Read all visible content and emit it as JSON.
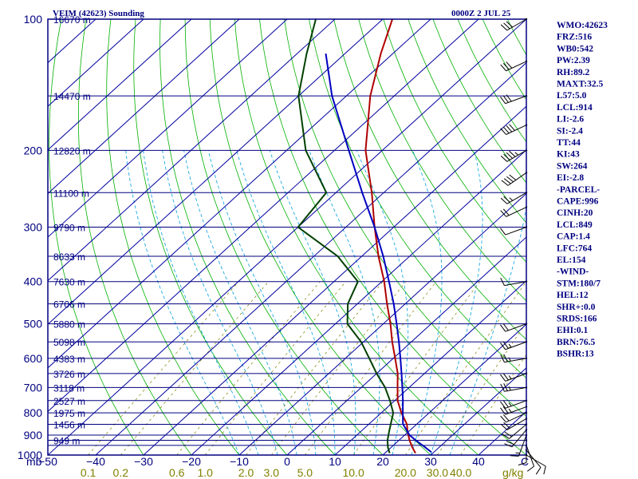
{
  "header": {
    "title": "VEIM (42623) Sounding",
    "time": "0000Z  2 JUL 25"
  },
  "chart_data": {
    "type": "line",
    "diagram": "skew-T log-P",
    "xlabel": "C",
    "pressure_unit": "mb",
    "mixing_ratio_unit": "g/kg",
    "pressure_range": [
      1000,
      100
    ],
    "temperature_range": [
      -50,
      50
    ],
    "pressure_levels": [
      100,
      200,
      300,
      400,
      500,
      600,
      700,
      800,
      900,
      1000
    ],
    "pressure_labels": [
      "100",
      "200",
      "300",
      "400",
      "500",
      "600",
      "700",
      "800",
      "900",
      "1000"
    ],
    "temperature_ticks": [
      -50,
      -40,
      -30,
      -20,
      -10,
      0,
      10,
      20,
      30,
      40
    ],
    "temperature_tick_labels": [
      "−50",
      "−40",
      "−30",
      "−20",
      "−10",
      "0",
      "10",
      "20",
      "30",
      "40"
    ],
    "mixing_ratio_ticks": [
      0.1,
      0.2,
      0.6,
      1.0,
      2.0,
      3.0,
      5.0,
      10.0,
      20.0,
      30.0,
      40.0
    ],
    "mixing_ratio_tick_labels": [
      "0.1",
      "0.2",
      "0.6",
      "1.0",
      "2.0",
      "3.0",
      "5.0",
      "10.0",
      "20.0",
      "30.0",
      "40.0"
    ],
    "height_labels": [
      {
        "p": 100,
        "text": "16670 m"
      },
      {
        "p": 150,
        "text": "14470 m"
      },
      {
        "p": 200,
        "text": "12820 m"
      },
      {
        "p": 250,
        "text": "11100 m"
      },
      {
        "p": 300,
        "text": "9790 m"
      },
      {
        "p": 350,
        "text": "8633 m"
      },
      {
        "p": 400,
        "text": "7630 m"
      },
      {
        "p": 450,
        "text": "6706 m"
      },
      {
        "p": 500,
        "text": "5880 m"
      },
      {
        "p": 550,
        "text": "5098 m"
      },
      {
        "p": 600,
        "text": "4383 m"
      },
      {
        "p": 650,
        "text": "3726 m"
      },
      {
        "p": 700,
        "text": "3118 m"
      },
      {
        "p": 750,
        "text": "2527 m"
      },
      {
        "p": 800,
        "text": "1975 m"
      },
      {
        "p": 850,
        "text": "1456 m"
      },
      {
        "p": 925,
        "text": "949 m"
      }
    ],
    "series": [
      {
        "role": "temperature",
        "color": "#b00000",
        "points": [
          [
            990,
            26.4
          ],
          [
            960,
            24.4
          ],
          [
            925,
            22.2
          ],
          [
            880,
            19.6
          ],
          [
            850,
            18.0
          ],
          [
            800,
            14.2
          ],
          [
            750,
            10.6
          ],
          [
            700,
            7.6
          ],
          [
            650,
            4.4
          ],
          [
            600,
            0.4
          ],
          [
            550,
            -4.0
          ],
          [
            500,
            -8.5
          ],
          [
            450,
            -13.8
          ],
          [
            400,
            -19.5
          ],
          [
            350,
            -26.5
          ],
          [
            300,
            -34.0
          ],
          [
            250,
            -42.5
          ],
          [
            200,
            -53.5
          ],
          [
            150,
            -65.0
          ],
          [
            120,
            -72.5
          ],
          [
            100,
            -78.0
          ]
        ]
      },
      {
        "role": "dewpoint",
        "color": "#004000",
        "points": [
          [
            990,
            21.0
          ],
          [
            960,
            19.3
          ],
          [
            925,
            17.6
          ],
          [
            880,
            15.8
          ],
          [
            850,
            14.6
          ],
          [
            800,
            12.5
          ],
          [
            750,
            9.0
          ],
          [
            700,
            5.0
          ],
          [
            650,
            0.0
          ],
          [
            600,
            -5.0
          ],
          [
            550,
            -10.5
          ],
          [
            500,
            -17.5
          ],
          [
            450,
            -22.0
          ],
          [
            400,
            -25.0
          ],
          [
            350,
            -35.0
          ],
          [
            300,
            -50.0
          ],
          [
            250,
            -52.0
          ],
          [
            200,
            -66.0
          ],
          [
            150,
            -80.0
          ],
          [
            120,
            -88.0
          ],
          [
            100,
            -94.0
          ]
        ]
      },
      {
        "role": "parcel",
        "color": "#0000c0",
        "points": [
          [
            985,
            29.5
          ],
          [
            960,
            27.1
          ],
          [
            925,
            23.5
          ],
          [
            900,
            21.0
          ],
          [
            849,
            17.1
          ],
          [
            800,
            14.5
          ],
          [
            750,
            11.7
          ],
          [
            700,
            8.6
          ],
          [
            650,
            5.2
          ],
          [
            600,
            1.5
          ],
          [
            550,
            -2.6
          ],
          [
            500,
            -7.2
          ],
          [
            450,
            -12.4
          ],
          [
            400,
            -18.5
          ],
          [
            350,
            -25.5
          ],
          [
            300,
            -34.0
          ],
          [
            250,
            -44.5
          ],
          [
            200,
            -57.0
          ],
          [
            150,
            -73.0
          ],
          [
            120,
            -84.0
          ]
        ]
      }
    ],
    "wind_barbs": [
      {
        "p": 1000,
        "dir": 120,
        "spd": 10
      },
      {
        "p": 975,
        "dir": 140,
        "spd": 10
      },
      {
        "p": 950,
        "dir": 160,
        "spd": 10
      },
      {
        "p": 925,
        "dir": 180,
        "spd": 10
      },
      {
        "p": 900,
        "dir": 200,
        "spd": 15
      },
      {
        "p": 875,
        "dir": 220,
        "spd": 20
      },
      {
        "p": 850,
        "dir": 230,
        "spd": 20
      },
      {
        "p": 825,
        "dir": 240,
        "spd": 20
      },
      {
        "p": 800,
        "dir": 245,
        "spd": 20
      },
      {
        "p": 775,
        "dir": 250,
        "spd": 25
      },
      {
        "p": 750,
        "dir": 250,
        "spd": 25
      },
      {
        "p": 700,
        "dir": 260,
        "spd": 25
      },
      {
        "p": 650,
        "dir": 250,
        "spd": 25
      },
      {
        "p": 600,
        "dir": 260,
        "spd": 25
      },
      {
        "p": 550,
        "dir": 250,
        "spd": 25
      },
      {
        "p": 500,
        "dir": 250,
        "spd": 20
      },
      {
        "p": 400,
        "dir": 260,
        "spd": 10
      },
      {
        "p": 300,
        "dir": 250,
        "spd": 10
      },
      {
        "p": 270,
        "dir": 245,
        "spd": 20
      },
      {
        "p": 250,
        "dir": 240,
        "spd": 25
      },
      {
        "p": 225,
        "dir": 235,
        "spd": 40
      },
      {
        "p": 200,
        "dir": 240,
        "spd": 45
      },
      {
        "p": 175,
        "dir": 245,
        "spd": 40
      },
      {
        "p": 150,
        "dir": 250,
        "spd": 30
      },
      {
        "p": 125,
        "dir": 245,
        "spd": 30
      },
      {
        "p": 100,
        "dir": 240,
        "spd": 30
      }
    ]
  },
  "indices": [
    "WMO:42623",
    "FRZ:516",
    "WB0:542",
    "PW:2.39",
    "RH:89.2",
    "MAXT:32.5",
    "L57:5.0",
    "LCL:914",
    "LI:-2.6",
    "SI:-2.4",
    "TT:44",
    "KI:43",
    "SW:264",
    "EI:-2.8",
    "-PARCEL-",
    "CAPE:996",
    "CINH:20",
    "LCL:849",
    "CAP:1.4",
    "LFC:764",
    "EL:154",
    "-WIND-",
    "STM:180/7",
    "HEL:12",
    "SHR+:0.0",
    "SRDS:166",
    "EHI:0.1",
    "BRN:76.5",
    "BSHR:13"
  ],
  "colors": {
    "isobar": "#000080",
    "isotherm": "#0000a0",
    "dry_adiabat": "#00b000",
    "moist_adiabat": "#00a0e0",
    "mixing_ratio": "#808000",
    "frame": "#000080"
  }
}
